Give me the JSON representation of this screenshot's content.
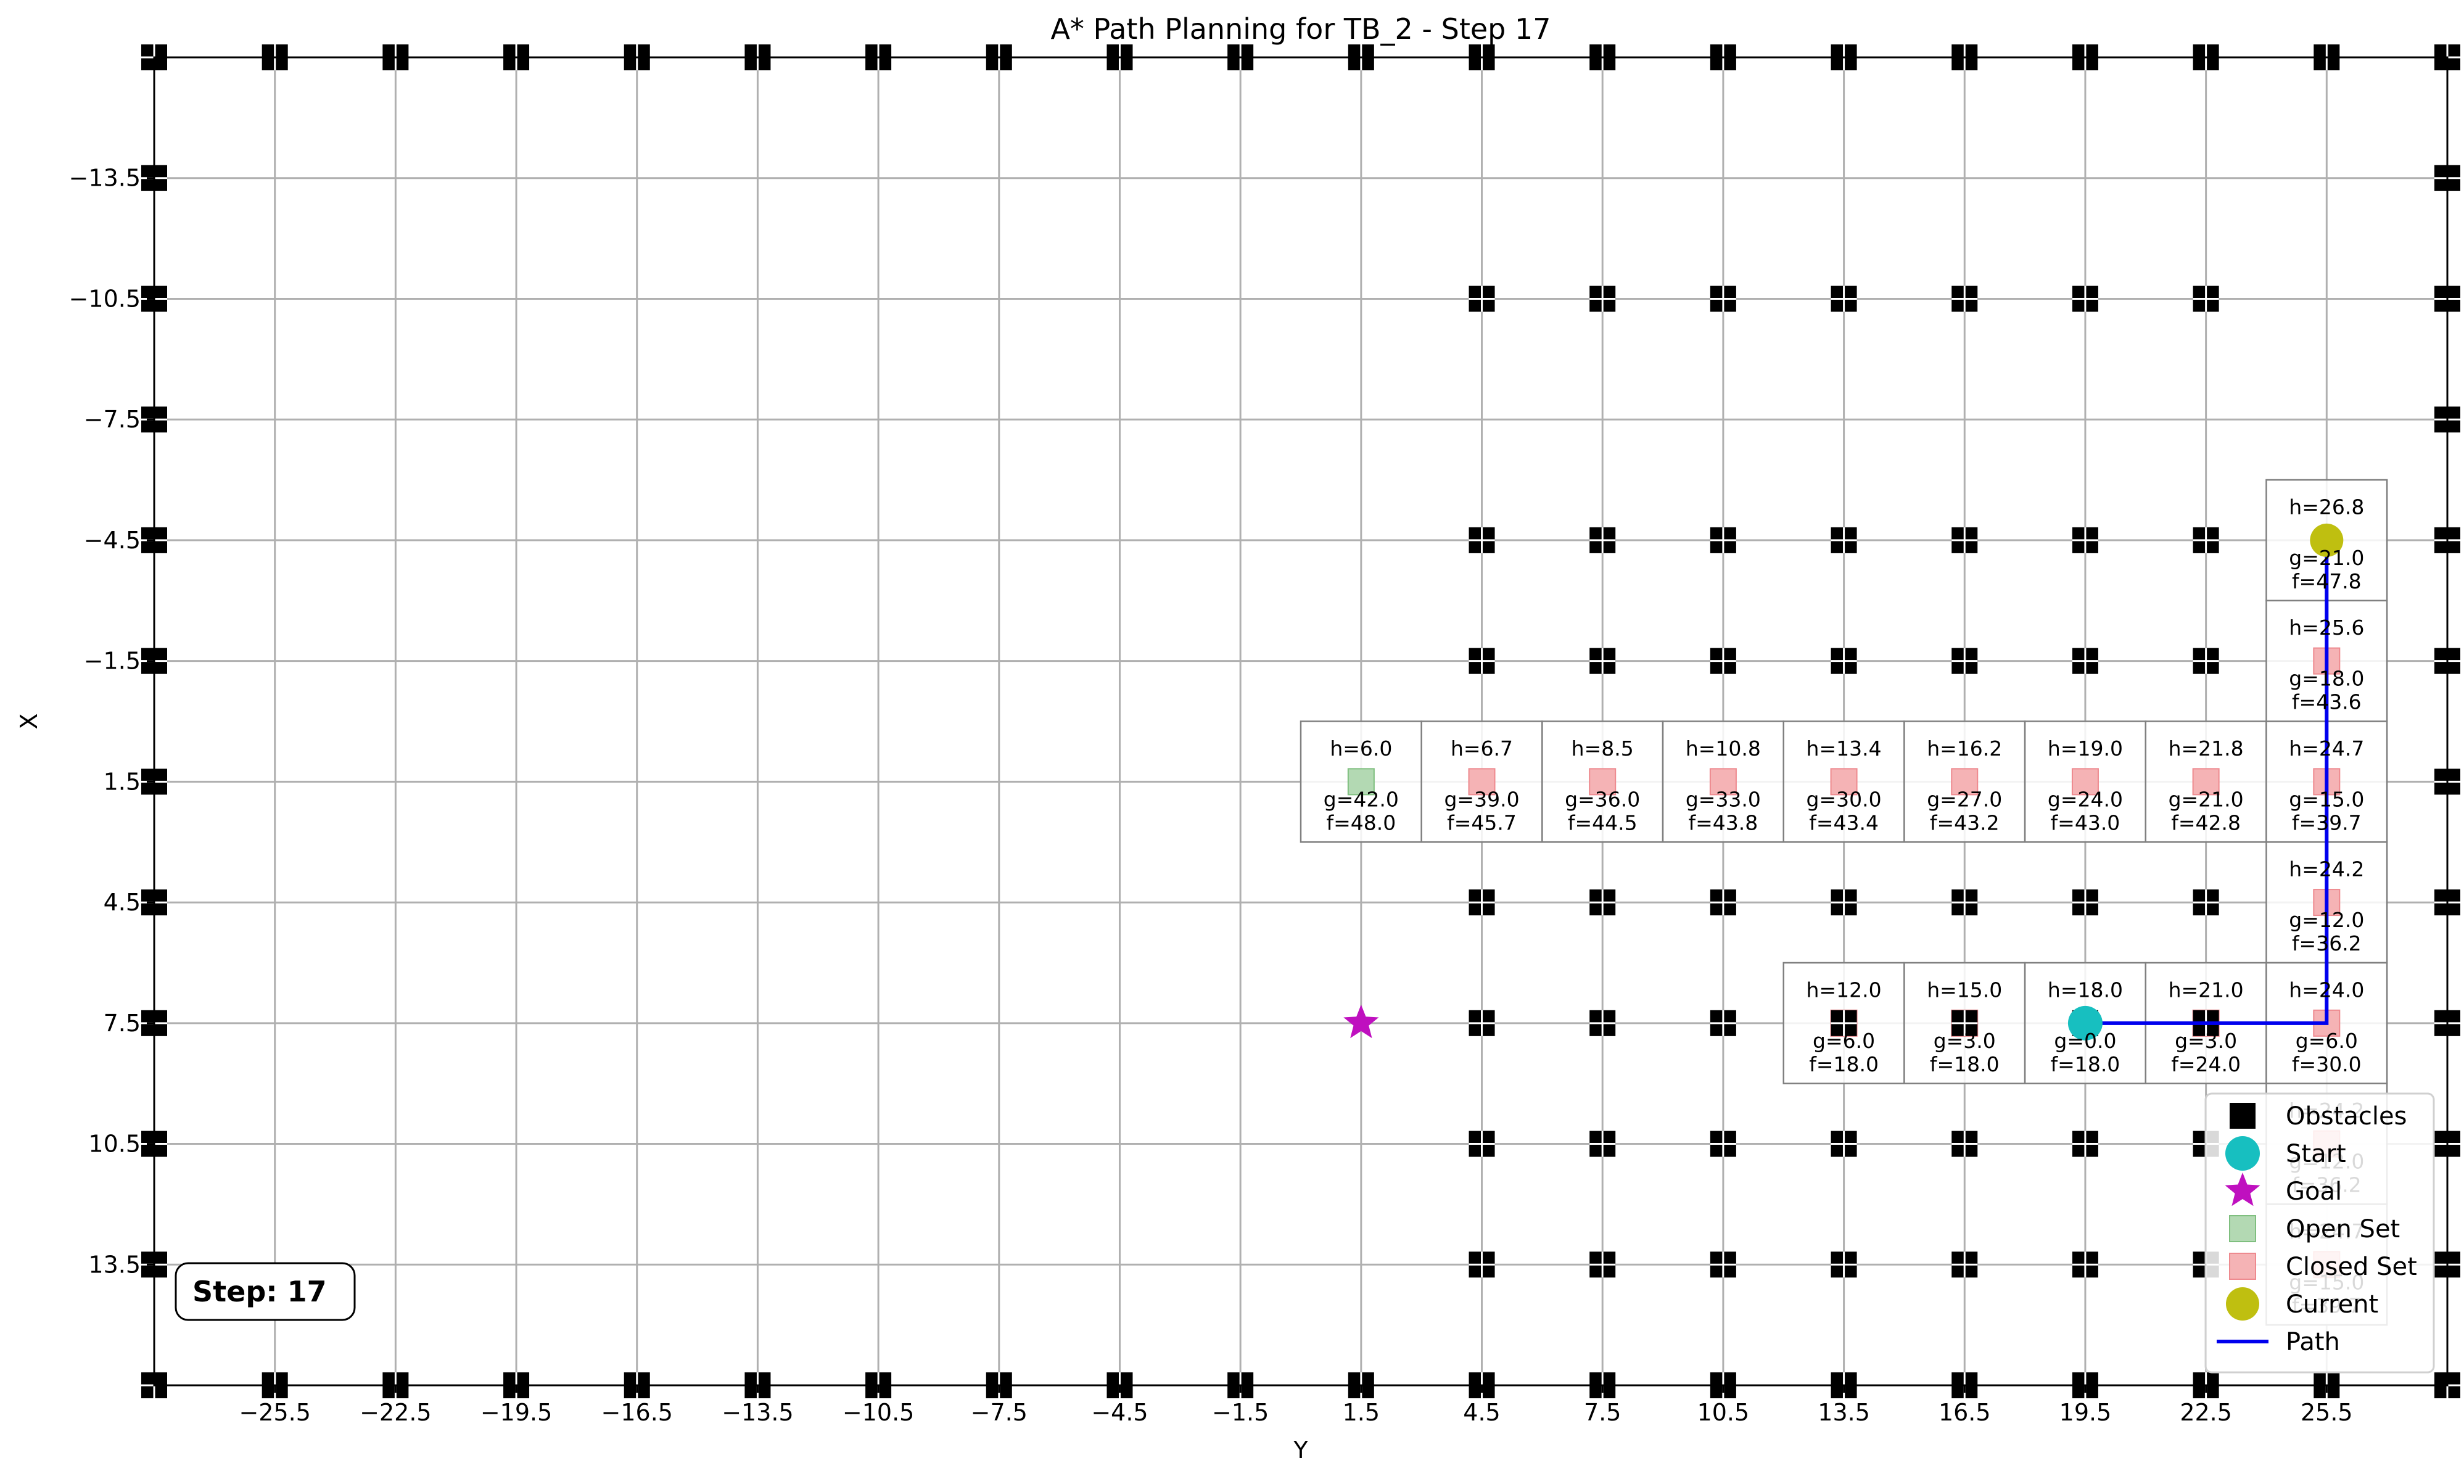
{
  "chart_data": {
    "type": "scatter",
    "title": "A* Path Planning for TB_2 - Step 17",
    "xlabel": "Y",
    "ylabel": "X",
    "xlim": [
      -28.5,
      28.5
    ],
    "ylim": [
      16.5,
      -16.5
    ],
    "y_axis_inverted": true,
    "grid": true,
    "xticks": [
      -25.5,
      -22.5,
      -19.5,
      -16.5,
      -13.5,
      -10.5,
      -7.5,
      -4.5,
      -1.5,
      1.5,
      4.5,
      7.5,
      10.5,
      13.5,
      16.5,
      19.5,
      22.5,
      25.5
    ],
    "xtick_labels": [
      "−25.5",
      "−22.5",
      "−19.5",
      "−16.5",
      "−13.5",
      "−10.5",
      "−7.5",
      "−4.5",
      "−1.5",
      "1.5",
      "4.5",
      "7.5",
      "10.5",
      "13.5",
      "16.5",
      "19.5",
      "22.5",
      "25.5"
    ],
    "yticks": [
      -13.5,
      -10.5,
      -7.5,
      -4.5,
      -1.5,
      1.5,
      4.5,
      7.5,
      10.5,
      13.5
    ],
    "ytick_labels": [
      "−13.5",
      "−10.5",
      "−7.5",
      "−4.5",
      "−1.5",
      "1.5",
      "4.5",
      "7.5",
      "10.5",
      "13.5"
    ],
    "colors": {
      "obstacle": "#000000",
      "start": "#17bfc0",
      "goal": "#bf10bf",
      "open": "#b3d9b3",
      "open_edge": "#7fbf7f",
      "closed": "#f5b3b5",
      "closed_edge": "#ee8a8f",
      "current": "#bfbf10",
      "path": "#0000ee",
      "grid": "#b0b0b0"
    },
    "obstacles": {
      "border_top_y": [
        -28.5,
        -25.5,
        -22.5,
        -19.5,
        -16.5,
        -13.5,
        -10.5,
        -7.5,
        -4.5,
        -1.5,
        1.5,
        4.5,
        7.5,
        10.5,
        13.5,
        16.5,
        19.5,
        22.5,
        25.5,
        28.5
      ],
      "border_bottom_y": [
        -28.5,
        -25.5,
        -22.5,
        -19.5,
        -16.5,
        -13.5,
        -10.5,
        -7.5,
        -4.5,
        -1.5,
        1.5,
        4.5,
        7.5,
        10.5,
        13.5,
        16.5,
        19.5,
        22.5,
        25.5,
        28.5
      ],
      "border_side_x": [
        -13.5,
        -10.5,
        -7.5,
        -4.5,
        -1.5,
        1.5,
        4.5,
        7.5,
        10.5,
        13.5
      ],
      "interior_y": [
        4.5,
        7.5,
        10.5,
        13.5,
        16.5,
        19.5,
        22.5
      ],
      "interior_x": [
        -10.5,
        -4.5,
        -1.5,
        4.5,
        7.5,
        10.5,
        13.5
      ]
    },
    "start": [
      19.5,
      7.5
    ],
    "goal": [
      1.5,
      7.5
    ],
    "current": [
      25.5,
      -4.5
    ],
    "path": [
      [
        19.5,
        7.5
      ],
      [
        25.5,
        7.5
      ],
      [
        25.5,
        -4.5
      ]
    ],
    "open_set": [
      [
        1.5,
        1.5
      ]
    ],
    "closed_set": [
      [
        4.5,
        1.5
      ],
      [
        7.5,
        1.5
      ],
      [
        10.5,
        1.5
      ],
      [
        13.5,
        1.5
      ],
      [
        16.5,
        1.5
      ],
      [
        19.5,
        1.5
      ],
      [
        22.5,
        1.5
      ],
      [
        25.5,
        1.5
      ],
      [
        25.5,
        -1.5
      ],
      [
        25.5,
        4.5
      ],
      [
        13.5,
        7.5
      ],
      [
        16.5,
        7.5
      ],
      [
        22.5,
        7.5
      ],
      [
        25.5,
        7.5
      ],
      [
        25.5,
        10.5
      ],
      [
        25.5,
        13.5
      ]
    ],
    "cells": [
      {
        "y": 1.5,
        "x": 1.5,
        "h": "h=6.0",
        "g": "g=42.0",
        "f": "f=48.0"
      },
      {
        "y": 4.5,
        "x": 1.5,
        "h": "h=6.7",
        "g": "g=39.0",
        "f": "f=45.7"
      },
      {
        "y": 7.5,
        "x": 1.5,
        "h": "h=8.5",
        "g": "g=36.0",
        "f": "f=44.5"
      },
      {
        "y": 10.5,
        "x": 1.5,
        "h": "h=10.8",
        "g": "g=33.0",
        "f": "f=43.8"
      },
      {
        "y": 13.5,
        "x": 1.5,
        "h": "h=13.4",
        "g": "g=30.0",
        "f": "f=43.4"
      },
      {
        "y": 16.5,
        "x": 1.5,
        "h": "h=16.2",
        "g": "g=27.0",
        "f": "f=43.2"
      },
      {
        "y": 19.5,
        "x": 1.5,
        "h": "h=19.0",
        "g": "g=24.0",
        "f": "f=43.0"
      },
      {
        "y": 22.5,
        "x": 1.5,
        "h": "h=21.8",
        "g": "g=21.0",
        "f": "f=42.8"
      },
      {
        "y": 25.5,
        "x": 1.5,
        "h": "h=24.7",
        "g": "g=15.0",
        "f": "f=39.7"
      },
      {
        "y": 25.5,
        "x": -4.5,
        "h": "h=26.8",
        "g": "g=21.0",
        "f": "f=47.8"
      },
      {
        "y": 25.5,
        "x": -1.5,
        "h": "h=25.6",
        "g": "g=18.0",
        "f": "f=43.6"
      },
      {
        "y": 25.5,
        "x": 4.5,
        "h": "h=24.2",
        "g": "g=12.0",
        "f": "f=36.2"
      },
      {
        "y": 13.5,
        "x": 7.5,
        "h": "h=12.0",
        "g": "g=6.0",
        "f": "f=18.0"
      },
      {
        "y": 16.5,
        "x": 7.5,
        "h": "h=15.0",
        "g": "g=3.0",
        "f": "f=18.0"
      },
      {
        "y": 19.5,
        "x": 7.5,
        "h": "h=18.0",
        "g": "g=0.0",
        "f": "f=18.0"
      },
      {
        "y": 22.5,
        "x": 7.5,
        "h": "h=21.0",
        "g": "g=3.0",
        "f": "f=24.0"
      },
      {
        "y": 25.5,
        "x": 7.5,
        "h": "h=24.0",
        "g": "g=6.0",
        "f": "f=30.0"
      },
      {
        "y": 25.5,
        "x": 10.5,
        "h": "h=24.2",
        "g": "g=12.0",
        "f": "f=36.2"
      },
      {
        "y": 25.5,
        "x": 13.5,
        "h": "h=24.7",
        "g": "g=15.0",
        "f": "f=39.7"
      }
    ],
    "legend": {
      "placement": "lower-right",
      "entries": [
        {
          "key": "obstacle",
          "label": "Obstacles"
        },
        {
          "key": "start",
          "label": "Start"
        },
        {
          "key": "goal",
          "label": "Goal"
        },
        {
          "key": "open",
          "label": "Open Set"
        },
        {
          "key": "closed",
          "label": "Closed Set"
        },
        {
          "key": "current",
          "label": "Current"
        },
        {
          "key": "path",
          "label": "Path"
        }
      ]
    },
    "step_label": "Step: 17"
  }
}
